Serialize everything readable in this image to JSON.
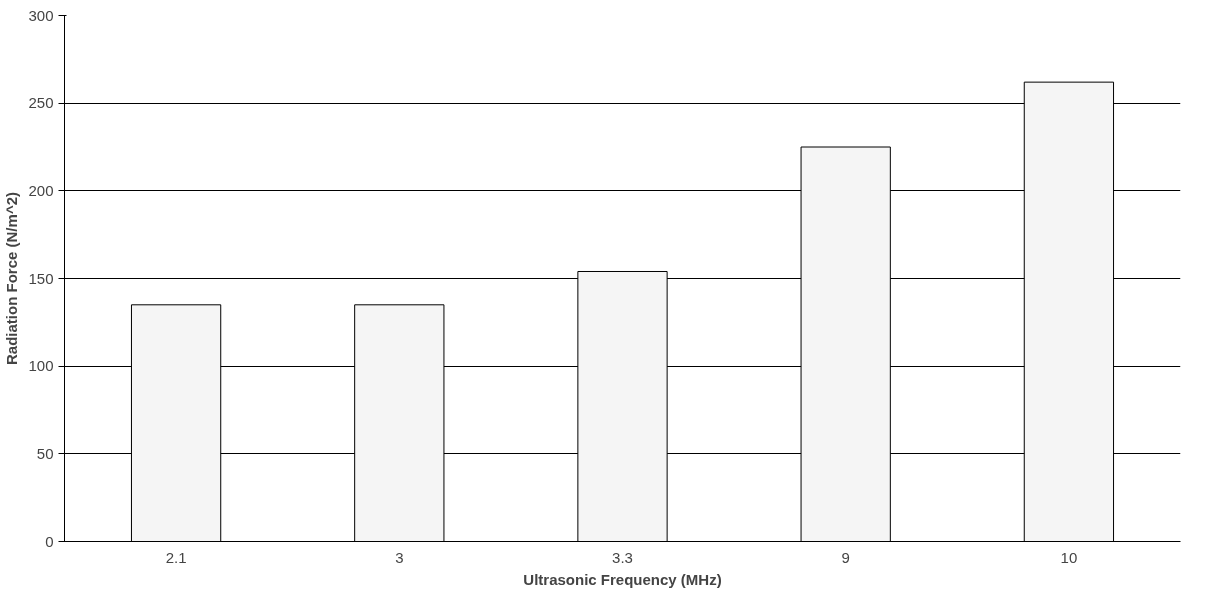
{
  "chart_data": {
    "type": "bar",
    "xlabel": "Ultrasonic Frequency (MHz)",
    "ylabel": "Radiation Force (N/m^2)",
    "categories": [
      "2.1",
      "3",
      "3.3",
      "9",
      "10"
    ],
    "series": [
      {
        "color": "#f5f5f5",
        "values": [
          135,
          135,
          154,
          225,
          262
        ]
      }
    ],
    "ylim": [
      0,
      300
    ],
    "yticks": [
      0,
      50,
      100,
      150,
      200,
      250,
      300
    ],
    "grid": "y"
  }
}
